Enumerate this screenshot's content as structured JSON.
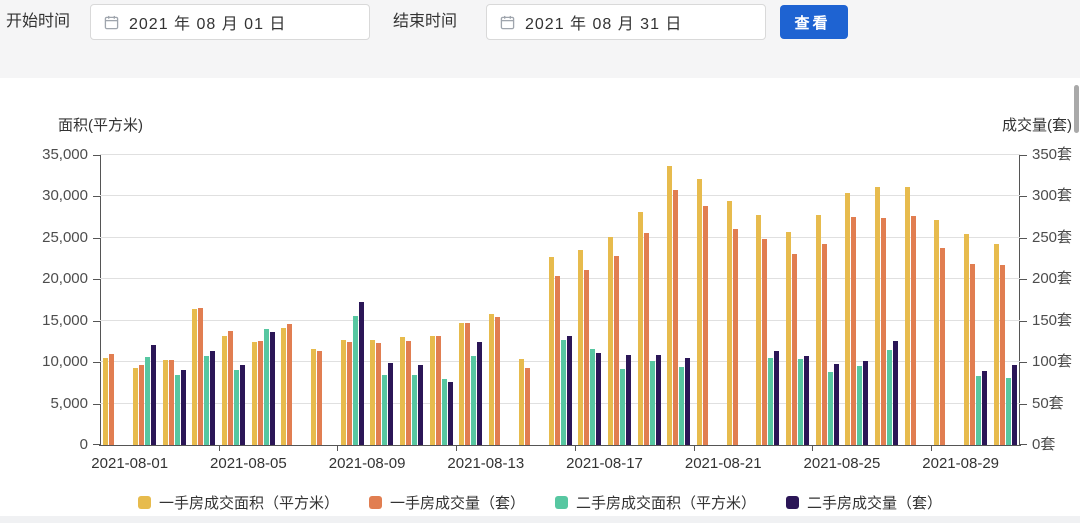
{
  "filters": {
    "start_label": "开始时间",
    "start_value": "2021 年 08 月 01 日",
    "end_label": "结束时间",
    "end_value": "2021 年 08 月 31 日",
    "view_button": "查看"
  },
  "colors": {
    "first_hand_area": "#E7BB4D",
    "first_hand_units": "#E17E51",
    "second_hand_area": "#57C7A1",
    "second_hand_units": "#2B1657",
    "button_blue": "#1E63D2"
  },
  "chart_data": {
    "type": "bar",
    "grid": true,
    "legend_position": "bottom",
    "categories": [
      "2021-08-01",
      "2021-08-02",
      "2021-08-03",
      "2021-08-04",
      "2021-08-05",
      "2021-08-06",
      "2021-08-07",
      "2021-08-08",
      "2021-08-09",
      "2021-08-10",
      "2021-08-11",
      "2021-08-12",
      "2021-08-13",
      "2021-08-14",
      "2021-08-15",
      "2021-08-16",
      "2021-08-17",
      "2021-08-18",
      "2021-08-19",
      "2021-08-20",
      "2021-08-21",
      "2021-08-22",
      "2021-08-23",
      "2021-08-24",
      "2021-08-25",
      "2021-08-26",
      "2021-08-27",
      "2021-08-28",
      "2021-08-29",
      "2021-08-30",
      "2021-08-31"
    ],
    "left_axis": {
      "title": "面积(平方米)",
      "min": 0,
      "max": 35000,
      "step": 5000,
      "tick_labels": [
        "0",
        "5,000",
        "10,000",
        "15,000",
        "20,000",
        "25,000",
        "30,000",
        "35,000"
      ]
    },
    "right_axis": {
      "title": "成交量(套)",
      "min": 0,
      "max": 350,
      "step": 50,
      "tick_labels": [
        "0套",
        "50套",
        "100套",
        "150套",
        "200套",
        "250套",
        "300套",
        "350套"
      ]
    },
    "x_axis": {
      "label_every": 4,
      "labels_shown": [
        "2021-08-01",
        "2021-08-05",
        "2021-08-09",
        "2021-08-13",
        "2021-08-17",
        "2021-08-21",
        "2021-08-25",
        "2021-08-29"
      ]
    },
    "series": [
      {
        "name": "一手房成交面积（平方米）",
        "color": "#E7BB4D",
        "axis": "left",
        "values": [
          10500,
          9300,
          10200,
          16400,
          13200,
          12400,
          14150,
          11600,
          12650,
          12650,
          13000,
          13100,
          14700,
          15800,
          10350,
          22700,
          23500,
          25100,
          28100,
          33700,
          32100,
          29400,
          27700,
          25650,
          27750,
          30450,
          31100,
          31100,
          27150,
          25450,
          24250
        ]
      },
      {
        "name": "一手房成交量（套）",
        "color": "#E17E51",
        "axis": "right",
        "values": [
          110,
          97,
          103,
          165,
          138,
          125,
          146,
          114,
          124,
          123,
          126,
          132,
          147,
          154,
          93,
          204,
          211,
          228,
          256,
          308,
          289,
          261,
          249,
          231,
          243,
          275,
          274,
          276,
          238,
          218,
          217
        ]
      },
      {
        "name": "二手房成交面积（平方米）",
        "color": "#57C7A1",
        "axis": "left",
        "values": [
          null,
          10600,
          8450,
          10800,
          9100,
          14050,
          null,
          null,
          15600,
          8400,
          8500,
          7950,
          10750,
          null,
          null,
          12700,
          11550,
          9200,
          10150,
          9400,
          null,
          null,
          10450,
          10400,
          8850,
          9550,
          11470,
          null,
          null,
          8350,
          8100
        ]
      },
      {
        "name": "二手房成交量（套）",
        "color": "#2B1657",
        "axis": "right",
        "values": [
          null,
          121,
          91,
          113,
          96,
          136,
          null,
          null,
          172,
          99,
          97,
          76,
          124,
          null,
          null,
          131,
          111,
          109,
          109,
          105,
          null,
          null,
          113,
          107,
          98,
          101,
          125,
          null,
          null,
          89,
          97
        ]
      }
    ]
  }
}
